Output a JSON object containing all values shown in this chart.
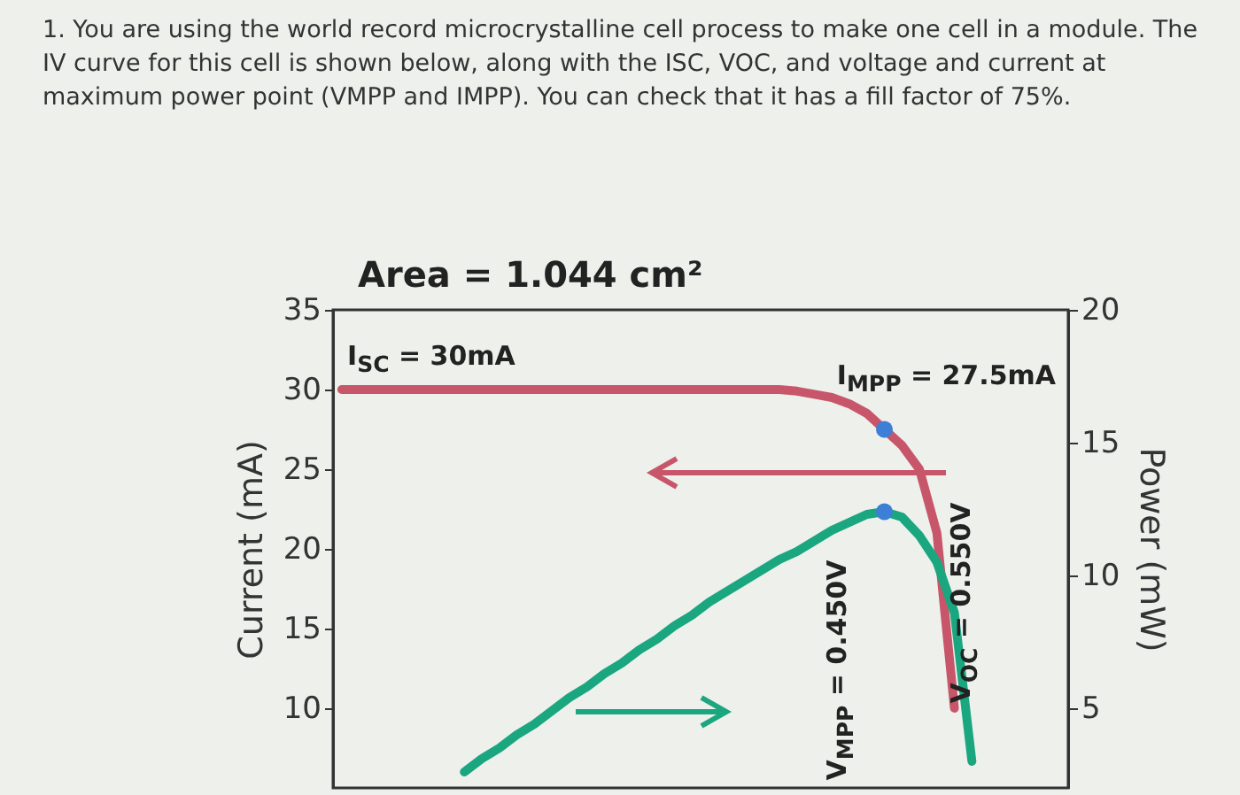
{
  "chart_data": {
    "type": "line",
    "title": "Area = 1.044 cm²",
    "ylabel": "Current (mA)",
    "y2label": "Power (mW)",
    "categories": [
      null,
      null,
      null,
      null,
      null,
      null,
      null,
      null,
      null,
      null,
      null,
      null,
      null,
      null,
      null,
      null,
      null,
      null,
      null,
      null,
      null,
      null,
      null,
      null,
      null,
      null,
      null,
      null,
      null,
      null,
      null,
      null,
      null,
      null,
      null,
      null,
      null,
      null,
      null,
      null,
      null,
      null
    ],
    "ylim": [
      5,
      35
    ],
    "yticks": [
      10,
      15,
      20,
      25,
      30,
      35
    ],
    "y2lim": [
      2,
      20
    ],
    "y2ticks": [
      5,
      10,
      15,
      20
    ],
    "series": [
      {
        "type": "line",
        "color": "#c8566a",
        "values": [
          30,
          30,
          30,
          30,
          30,
          30,
          30,
          30,
          30,
          30,
          30,
          30,
          30,
          30,
          30,
          30,
          30,
          30,
          30,
          30,
          30,
          30,
          30,
          30,
          30,
          30,
          29.9,
          29.7,
          29.5,
          29.1,
          28.5,
          27.5,
          26.5,
          25,
          21,
          10,
          null,
          null,
          null,
          null,
          null,
          null
        ]
      },
      {
        "type": "line",
        "axis": "y2",
        "color": "#1aa67f",
        "values": [
          null,
          null,
          null,
          null,
          null,
          null,
          null,
          2.6,
          3.1,
          3.5,
          4.0,
          4.4,
          4.9,
          5.4,
          5.8,
          6.3,
          6.7,
          7.2,
          7.6,
          8.1,
          8.5,
          9.0,
          9.4,
          9.8,
          10.2,
          10.6,
          10.9,
          11.3,
          11.7,
          12.0,
          12.3,
          12.4,
          12.2,
          11.5,
          10.5,
          8.6,
          3.0,
          null,
          null,
          null,
          null,
          null
        ]
      },
      {
        "type": "scatter",
        "marker": "circle",
        "color": "#3d7fd6",
        "values": [
          null,
          null,
          null,
          null,
          null,
          null,
          null,
          null,
          null,
          null,
          null,
          null,
          null,
          null,
          null,
          null,
          null,
          null,
          null,
          null,
          null,
          null,
          null,
          null,
          null,
          null,
          null,
          null,
          null,
          null,
          null,
          27.5,
          null,
          null,
          null,
          null,
          null,
          null,
          null,
          null,
          null,
          null
        ]
      },
      {
        "type": "scatter",
        "axis": "y2",
        "marker": "circle",
        "color": "#3d7fd6",
        "values": [
          null,
          null,
          null,
          null,
          null,
          null,
          null,
          null,
          null,
          null,
          null,
          null,
          null,
          null,
          null,
          null,
          null,
          null,
          null,
          null,
          null,
          null,
          null,
          null,
          null,
          null,
          null,
          null,
          null,
          null,
          null,
          12.4,
          null,
          null,
          null,
          null,
          null,
          null,
          null,
          null,
          null,
          null
        ]
      }
    ],
    "annotations": [
      "1. You are using the world record microcrystalline cell process to make one cell in a module. The IV curve for this cell is shown below, along with the ISC, VOC, and voltage and current at maximum power point (VMPP and IMPP). You can check that it has a fill factor of 75%.",
      "I$_{SC}$ = 30mA",
      "I$_{MPP}$ = 27.5mA",
      "V$_{MPP}$ = 0.450V",
      "V$_{OC}$ = 0.550V"
    ]
  }
}
